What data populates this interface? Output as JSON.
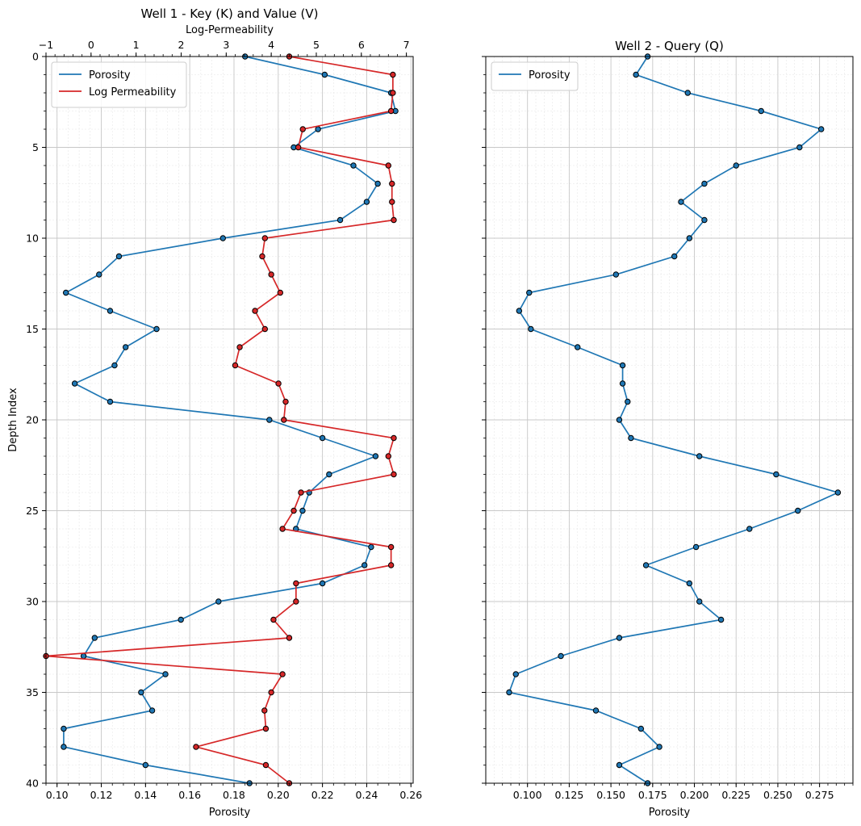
{
  "chart_data": [
    {
      "type": "line",
      "title": "Well 1 - Key (K) and Value (V)",
      "xlabel": "Porosity",
      "ylabel": "Depth Index",
      "x2label": "Log-Permeability",
      "xlim": [
        0.095,
        0.261
      ],
      "x2lim": [
        -1.0,
        7.15
      ],
      "ylim": [
        40,
        0
      ],
      "xticks": [
        "0.10",
        "0.12",
        "0.14",
        "0.16",
        "0.18",
        "0.20",
        "0.22",
        "0.24",
        "0.26"
      ],
      "x2ticks": [
        "−1",
        "0",
        "1",
        "2",
        "3",
        "4",
        "5",
        "6",
        "7"
      ],
      "yticks": [
        "0",
        "5",
        "10",
        "15",
        "20",
        "25",
        "30",
        "35",
        "40"
      ],
      "grid": true,
      "legend_position": "top-left",
      "series": [
        {
          "name": "Porosity",
          "axis": "bottom",
          "color": "#1f77b4",
          "depth": [
            0,
            1,
            2,
            3,
            4,
            5,
            6,
            7,
            8,
            9,
            10,
            11,
            12,
            13,
            14,
            15,
            16,
            17,
            18,
            19,
            20,
            21,
            22,
            23,
            24,
            25,
            26,
            27,
            28,
            29,
            30,
            31,
            32,
            33,
            34,
            35,
            36,
            37,
            38,
            39,
            40
          ],
          "values": [
            0.185,
            0.221,
            0.251,
            0.253,
            0.218,
            0.207,
            0.234,
            0.245,
            0.24,
            0.228,
            0.175,
            0.128,
            0.119,
            0.104,
            0.124,
            0.145,
            0.131,
            0.126,
            0.108,
            0.124,
            0.196,
            0.22,
            0.244,
            0.223,
            0.214,
            0.211,
            0.208,
            0.242,
            0.239,
            0.22,
            0.173,
            0.156,
            0.117,
            0.112,
            0.149,
            0.138,
            0.143,
            0.103,
            0.103,
            0.14,
            0.187
          ]
        },
        {
          "name": "Log Permeability",
          "axis": "top",
          "color": "#d62728",
          "depth": [
            0,
            1,
            2,
            3,
            4,
            5,
            6,
            7,
            8,
            9,
            10,
            11,
            12,
            13,
            14,
            15,
            16,
            17,
            18,
            19,
            20,
            21,
            22,
            23,
            24,
            25,
            26,
            27,
            28,
            29,
            30,
            31,
            32,
            33,
            34,
            35,
            36,
            37,
            38,
            39,
            40
          ],
          "values": [
            4.4,
            6.7,
            6.7,
            6.66,
            4.7,
            4.6,
            6.6,
            6.68,
            6.68,
            6.72,
            3.86,
            3.8,
            4.0,
            4.2,
            3.64,
            3.86,
            3.3,
            3.2,
            4.16,
            4.32,
            4.28,
            6.72,
            6.6,
            6.72,
            4.66,
            4.5,
            4.25,
            6.66,
            6.66,
            4.55,
            4.55,
            4.05,
            4.4,
            -1.0,
            4.25,
            4.0,
            3.85,
            3.88,
            2.33,
            3.88,
            4.4
          ]
        }
      ]
    },
    {
      "type": "line",
      "title": "Well 2 - Query (Q)",
      "xlabel": "Porosity",
      "ylabel": "",
      "xlim": [
        0.075,
        0.295
      ],
      "ylim": [
        40,
        0
      ],
      "xticks": [
        "0.100",
        "0.125",
        "0.150",
        "0.175",
        "0.200",
        "0.225",
        "0.250",
        "0.275"
      ],
      "yticks": [
        "0",
        "5",
        "10",
        "15",
        "20",
        "25",
        "30",
        "35",
        "40"
      ],
      "grid": true,
      "legend_position": "top-left",
      "series": [
        {
          "name": "Porosity",
          "axis": "bottom",
          "color": "#1f77b4",
          "depth": [
            0,
            1,
            2,
            3,
            4,
            5,
            6,
            7,
            8,
            9,
            10,
            11,
            12,
            13,
            14,
            15,
            16,
            17,
            18,
            19,
            20,
            21,
            22,
            23,
            24,
            25,
            26,
            27,
            28,
            29,
            30,
            31,
            32,
            33,
            34,
            35,
            36,
            37,
            38,
            39,
            40
          ],
          "values": [
            0.172,
            0.165,
            0.196,
            0.24,
            0.276,
            0.263,
            0.225,
            0.206,
            0.192,
            0.206,
            0.197,
            0.188,
            0.153,
            0.101,
            0.095,
            0.102,
            0.13,
            0.157,
            0.157,
            0.16,
            0.155,
            0.162,
            0.203,
            0.249,
            0.286,
            0.262,
            0.233,
            0.201,
            0.171,
            0.197,
            0.203,
            0.216,
            0.155,
            0.12,
            0.093,
            0.089,
            0.141,
            0.168,
            0.179,
            0.155,
            0.172
          ]
        }
      ]
    }
  ]
}
